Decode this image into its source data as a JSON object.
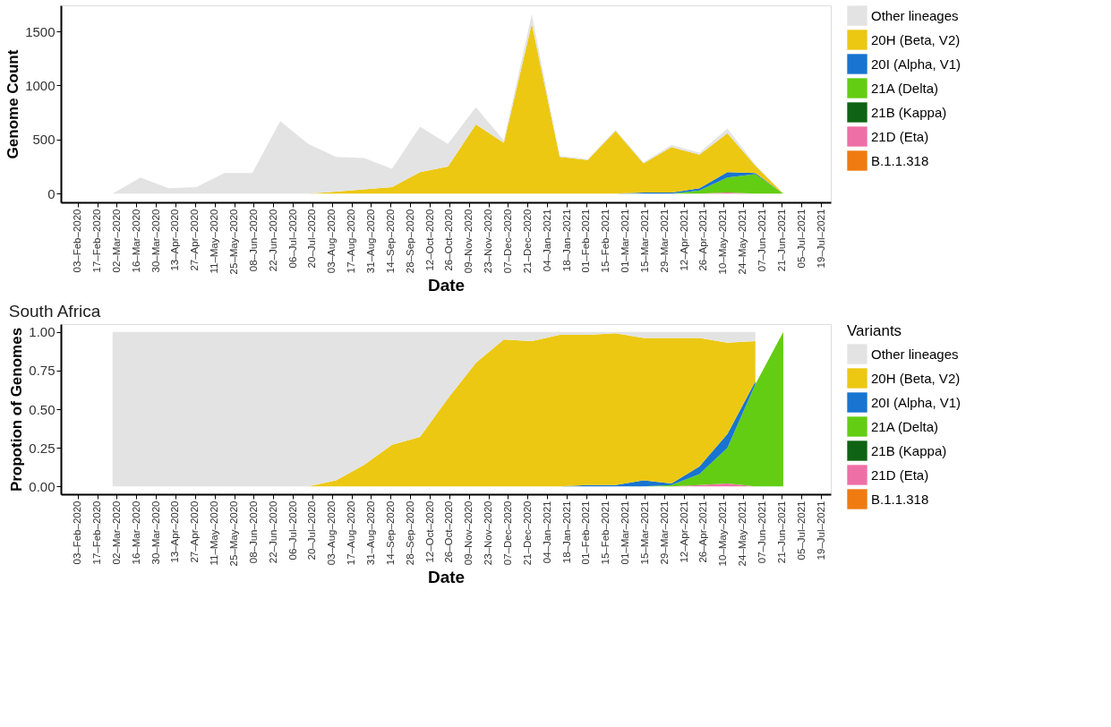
{
  "chart_data": [
    {
      "type": "area",
      "stacked": true,
      "ylabel": "Genome Count",
      "xlabel": "Date",
      "legend": "right",
      "x": [
        "2020-02-28",
        "2020-03-19",
        "2020-04-08",
        "2020-04-28",
        "2020-05-18",
        "2020-06-07",
        "2020-06-27",
        "2020-07-17",
        "2020-08-06",
        "2020-08-26",
        "2020-09-15",
        "2020-10-05",
        "2020-10-25",
        "2020-11-14",
        "2020-12-04",
        "2020-12-24",
        "2021-01-13",
        "2021-02-02",
        "2021-02-22",
        "2021-03-14",
        "2021-04-03",
        "2021-04-23",
        "2021-05-13",
        "2021-06-02",
        "2021-06-22"
      ],
      "series": [
        {
          "name": "B.1.1.318",
          "color": "#ef7b11",
          "values": [
            null,
            null,
            null,
            null,
            null,
            null,
            null,
            null,
            null,
            null,
            null,
            null,
            null,
            null,
            null,
            null,
            null,
            null,
            null,
            null,
            null,
            null,
            null,
            null,
            null
          ]
        },
        {
          "name": "21D (Eta)",
          "color": "#ee6fa6",
          "values": [
            0,
            0,
            0,
            0,
            0,
            0,
            0,
            0,
            0,
            0,
            0,
            0,
            0,
            0,
            0,
            0,
            0,
            0,
            0,
            0,
            0,
            0,
            10,
            0,
            0
          ]
        },
        {
          "name": "21B (Kappa)",
          "color": "#0f6314",
          "values": [
            null,
            null,
            null,
            null,
            null,
            null,
            null,
            null,
            null,
            null,
            null,
            null,
            null,
            null,
            null,
            null,
            null,
            null,
            null,
            null,
            null,
            null,
            null,
            null,
            null
          ]
        },
        {
          "name": "21A (Delta)",
          "color": "#63cd14",
          "values": [
            0,
            0,
            0,
            0,
            0,
            0,
            0,
            0,
            0,
            0,
            0,
            0,
            0,
            0,
            0,
            0,
            0,
            0,
            0,
            0,
            0,
            30,
            140,
            180,
            0
          ]
        },
        {
          "name": "20I (Alpha, V1)",
          "color": "#1874d0",
          "values": [
            0,
            0,
            0,
            0,
            0,
            0,
            0,
            0,
            0,
            0,
            0,
            0,
            0,
            0,
            0,
            0,
            0,
            0,
            0,
            10,
            10,
            20,
            50,
            10,
            0
          ]
        },
        {
          "name": "20H (Beta, V2)",
          "color": "#ecc813",
          "values": [
            0,
            0,
            0,
            0,
            0,
            0,
            0,
            0,
            20,
            40,
            60,
            200,
            250,
            640,
            470,
            1570,
            340,
            310,
            580,
            270,
            420,
            310,
            360,
            70,
            0
          ]
        },
        {
          "name": "Other lineages",
          "color": "#e3e3e3",
          "values": [
            0,
            150,
            50,
            60,
            190,
            190,
            670,
            460,
            320,
            290,
            170,
            420,
            210,
            160,
            20,
            90,
            10,
            10,
            10,
            10,
            20,
            20,
            40,
            10,
            0
          ]
        }
      ],
      "xlim": [
        "2020-01-22",
        "2021-07-26"
      ],
      "xticks": [
        {
          "value": "2020-02-03",
          "label": "03–Feb–2020"
        },
        {
          "value": "2020-02-17",
          "label": "17–Feb–2020"
        },
        {
          "value": "2020-03-02",
          "label": "02–Mar–2020"
        },
        {
          "value": "2020-03-16",
          "label": "16–Mar–2020"
        },
        {
          "value": "2020-03-30",
          "label": "30–Mar–2020"
        },
        {
          "value": "2020-04-13",
          "label": "13–Apr–2020"
        },
        {
          "value": "2020-04-27",
          "label": "27–Apr–2020"
        },
        {
          "value": "2020-05-11",
          "label": "11–May–2020"
        },
        {
          "value": "2020-05-25",
          "label": "25–May–2020"
        },
        {
          "value": "2020-06-08",
          "label": "08–Jun–2020"
        },
        {
          "value": "2020-06-22",
          "label": "22–Jun–2020"
        },
        {
          "value": "2020-07-06",
          "label": "06–Jul–2020"
        },
        {
          "value": "2020-07-20",
          "label": "20–Jul–2020"
        },
        {
          "value": "2020-08-03",
          "label": "03–Aug–2020"
        },
        {
          "value": "2020-08-17",
          "label": "17–Aug–2020"
        },
        {
          "value": "2020-08-31",
          "label": "31–Aug–2020"
        },
        {
          "value": "2020-09-14",
          "label": "14–Sep–2020"
        },
        {
          "value": "2020-09-28",
          "label": "28–Sep–2020"
        },
        {
          "value": "2020-10-12",
          "label": "12–Oct–2020"
        },
        {
          "value": "2020-10-26",
          "label": "26–Oct–2020"
        },
        {
          "value": "2020-11-09",
          "label": "09–Nov–2020"
        },
        {
          "value": "2020-11-23",
          "label": "23–Nov–2020"
        },
        {
          "value": "2020-12-07",
          "label": "07–Dec–2020"
        },
        {
          "value": "2020-12-21",
          "label": "21–Dec–2020"
        },
        {
          "value": "2021-01-04",
          "label": "04–Jan–2021"
        },
        {
          "value": "2021-01-18",
          "label": "18–Jan–2021"
        },
        {
          "value": "2021-02-01",
          "label": "01–Feb–2021"
        },
        {
          "value": "2021-02-15",
          "label": "15–Feb–2021"
        },
        {
          "value": "2021-03-01",
          "label": "01–Mar–2021"
        },
        {
          "value": "2021-03-15",
          "label": "15–Mar–2021"
        },
        {
          "value": "2021-03-29",
          "label": "29–Mar–2021"
        },
        {
          "value": "2021-04-12",
          "label": "12–Apr–2021"
        },
        {
          "value": "2021-04-26",
          "label": "26–Apr–2021"
        },
        {
          "value": "2021-05-10",
          "label": "10–May–2021"
        },
        {
          "value": "2021-05-24",
          "label": "24–May–2021"
        },
        {
          "value": "2021-06-07",
          "label": "07–Jun–2021"
        },
        {
          "value": "2021-06-21",
          "label": "21–Jun–2021"
        },
        {
          "value": "2021-07-05",
          "label": "05–Jul–2021"
        },
        {
          "value": "2021-07-19",
          "label": "19–Jul–2021"
        }
      ],
      "ylim": [
        -80,
        1740
      ],
      "yticks": [
        0,
        500,
        1000,
        1500
      ]
    },
    {
      "type": "area",
      "stacked": true,
      "title": "South Africa",
      "ylabel": "Propotion of Genomes",
      "xlabel": "Date",
      "legend": "right",
      "legend_title": "Variants",
      "x": [
        "2020-02-28",
        "2020-03-19",
        "2020-04-08",
        "2020-04-28",
        "2020-05-18",
        "2020-06-07",
        "2020-06-27",
        "2020-07-17",
        "2020-08-06",
        "2020-08-26",
        "2020-09-15",
        "2020-10-05",
        "2020-10-25",
        "2020-11-14",
        "2020-12-04",
        "2020-12-24",
        "2021-01-13",
        "2021-02-02",
        "2021-02-22",
        "2021-03-14",
        "2021-04-03",
        "2021-04-23",
        "2021-05-13",
        "2021-06-02",
        "2021-06-22"
      ],
      "series": [
        {
          "name": "B.1.1.318",
          "color": "#ef7b11",
          "values": [
            null,
            null,
            null,
            null,
            null,
            null,
            null,
            null,
            null,
            null,
            null,
            null,
            null,
            null,
            null,
            null,
            null,
            null,
            null,
            null,
            null,
            null,
            null,
            null,
            null
          ]
        },
        {
          "name": "21D (Eta)",
          "color": "#ee6fa6",
          "values": [
            0,
            0,
            0,
            0,
            0,
            0,
            0,
            0,
            0,
            0,
            0,
            0,
            0,
            0,
            0,
            0,
            0,
            0,
            0,
            0,
            0,
            0.01,
            0.02,
            0,
            0
          ]
        },
        {
          "name": "21B (Kappa)",
          "color": "#0f6314",
          "values": [
            null,
            null,
            null,
            null,
            null,
            null,
            null,
            null,
            null,
            null,
            null,
            null,
            null,
            null,
            null,
            null,
            null,
            null,
            null,
            null,
            null,
            null,
            null,
            null,
            null
          ]
        },
        {
          "name": "21A (Delta)",
          "color": "#63cd14",
          "values": [
            0,
            0,
            0,
            0,
            0,
            0,
            0,
            0,
            0,
            0,
            0,
            0,
            0,
            0,
            0,
            0,
            0,
            0,
            0,
            0,
            0.01,
            0.07,
            0.23,
            0.66,
            1.0
          ]
        },
        {
          "name": "20I (Alpha, V1)",
          "color": "#1874d0",
          "values": [
            0,
            0,
            0,
            0,
            0,
            0,
            0,
            0,
            0,
            0,
            0,
            0,
            0,
            0,
            0,
            0,
            0,
            0.01,
            0.01,
            0.04,
            0.01,
            0.05,
            0.09,
            0.02,
            null
          ]
        },
        {
          "name": "20H (Beta, V2)",
          "color": "#ecc813",
          "values": [
            0,
            0,
            0,
            0,
            0,
            0,
            0,
            0,
            0.04,
            0.14,
            0.27,
            0.32,
            0.57,
            0.8,
            0.95,
            0.94,
            0.98,
            0.97,
            0.98,
            0.92,
            0.94,
            0.83,
            0.59,
            0.26,
            null
          ]
        },
        {
          "name": "Other lineages",
          "color": "#e3e3e3",
          "values": [
            1.0,
            1.0,
            1.0,
            1.0,
            1.0,
            1.0,
            1.0,
            1.0,
            0.96,
            0.86,
            0.73,
            0.68,
            0.43,
            0.2,
            0.05,
            0.06,
            0.02,
            0.02,
            0.01,
            0.04,
            0.04,
            0.04,
            0.07,
            0.06,
            null
          ]
        }
      ],
      "xlim": [
        "2020-01-22",
        "2021-07-26"
      ],
      "xticks": [
        {
          "value": "2020-02-03",
          "label": "03–Feb–2020"
        },
        {
          "value": "2020-02-17",
          "label": "17–Feb–2020"
        },
        {
          "value": "2020-03-02",
          "label": "02–Mar–2020"
        },
        {
          "value": "2020-03-16",
          "label": "16–Mar–2020"
        },
        {
          "value": "2020-03-30",
          "label": "30–Mar–2020"
        },
        {
          "value": "2020-04-13",
          "label": "13–Apr–2020"
        },
        {
          "value": "2020-04-27",
          "label": "27–Apr–2020"
        },
        {
          "value": "2020-05-11",
          "label": "11–May–2020"
        },
        {
          "value": "2020-05-25",
          "label": "25–May–2020"
        },
        {
          "value": "2020-06-08",
          "label": "08–Jun–2020"
        },
        {
          "value": "2020-06-22",
          "label": "22–Jun–2020"
        },
        {
          "value": "2020-07-06",
          "label": "06–Jul–2020"
        },
        {
          "value": "2020-07-20",
          "label": "20–Jul–2020"
        },
        {
          "value": "2020-08-03",
          "label": "03–Aug–2020"
        },
        {
          "value": "2020-08-17",
          "label": "17–Aug–2020"
        },
        {
          "value": "2020-08-31",
          "label": "31–Aug–2020"
        },
        {
          "value": "2020-09-14",
          "label": "14–Sep–2020"
        },
        {
          "value": "2020-09-28",
          "label": "28–Sep–2020"
        },
        {
          "value": "2020-10-12",
          "label": "12–Oct–2020"
        },
        {
          "value": "2020-10-26",
          "label": "26–Oct–2020"
        },
        {
          "value": "2020-11-09",
          "label": "09–Nov–2020"
        },
        {
          "value": "2020-11-23",
          "label": "23–Nov–2020"
        },
        {
          "value": "2020-12-07",
          "label": "07–Dec–2020"
        },
        {
          "value": "2020-12-21",
          "label": "21–Dec–2020"
        },
        {
          "value": "2021-01-04",
          "label": "04–Jan–2021"
        },
        {
          "value": "2021-01-18",
          "label": "18–Jan–2021"
        },
        {
          "value": "2021-02-01",
          "label": "01–Feb–2021"
        },
        {
          "value": "2021-02-15",
          "label": "15–Feb–2021"
        },
        {
          "value": "2021-03-01",
          "label": "01–Mar–2021"
        },
        {
          "value": "2021-03-15",
          "label": "15–Mar–2021"
        },
        {
          "value": "2021-03-29",
          "label": "29–Mar–2021"
        },
        {
          "value": "2021-04-12",
          "label": "12–Apr–2021"
        },
        {
          "value": "2021-04-26",
          "label": "26–Apr–2021"
        },
        {
          "value": "2021-05-10",
          "label": "10–May–2021"
        },
        {
          "value": "2021-05-24",
          "label": "24–May–2021"
        },
        {
          "value": "2021-06-07",
          "label": "07–Jun–2021"
        },
        {
          "value": "2021-06-21",
          "label": "21–Jun–2021"
        },
        {
          "value": "2021-07-05",
          "label": "05–Jul–2021"
        },
        {
          "value": "2021-07-19",
          "label": "19–Jul–2021"
        }
      ],
      "ylim": [
        -0.05,
        1.05
      ],
      "yticks": [
        {
          "value": 0,
          "label": "0.00"
        },
        {
          "value": 0.25,
          "label": "0.25"
        },
        {
          "value": 0.5,
          "label": "0.50"
        },
        {
          "value": 0.75,
          "label": "0.75"
        },
        {
          "value": 1,
          "label": "1.00"
        }
      ]
    }
  ]
}
